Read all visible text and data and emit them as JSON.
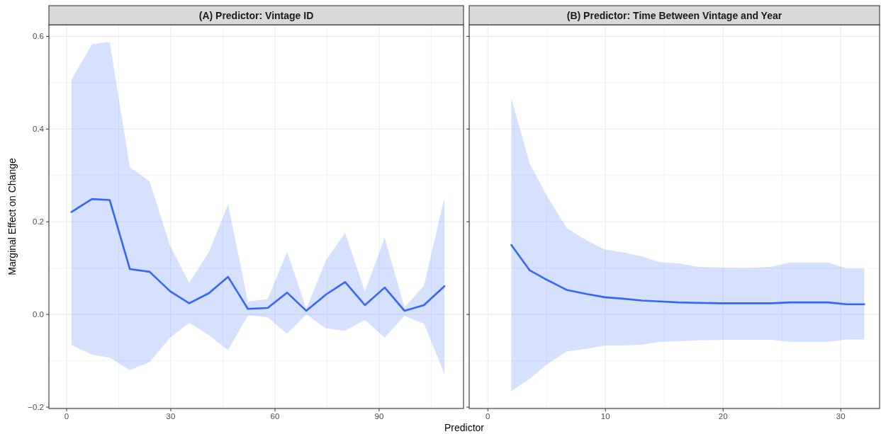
{
  "chart_data": [
    {
      "type": "line",
      "title": "(A) Predictor: Vintage ID",
      "xlabel": "Predictor",
      "ylabel": "Marginal Effect on  Change",
      "xlim": [
        -5.1,
        114.3
      ],
      "xticks": [
        0,
        30,
        60,
        90
      ],
      "ylim": [
        -0.203,
        0.625
      ],
      "yticks": [
        {
          "value": -0.2,
          "label": "−0.2"
        },
        {
          "value": 0,
          "label": "0.0"
        },
        {
          "value": 0.2,
          "label": "0.2"
        },
        {
          "value": 0.4,
          "label": "0.4"
        },
        {
          "value": 0.6,
          "label": "0.6"
        }
      ],
      "grid": true,
      "series": [
        {
          "color": "#3366ff",
          "x": [
            1.4,
            7.3,
            12.4,
            18.2,
            23.9,
            29.8,
            35.3,
            41,
            46.5,
            52.2,
            57.9,
            63.5,
            69,
            74.7,
            80.2,
            85.9,
            91.6,
            97.3,
            102.9,
            108.8
          ],
          "values": [
            0.221,
            0.249,
            0.247,
            0.098,
            0.092,
            0.05,
            0.024,
            0.046,
            0.081,
            0.012,
            0.014,
            0.047,
            0.008,
            0.043,
            0.07,
            0.02,
            0.058,
            0.008,
            0.02,
            0.061
          ],
          "upper": [
            0.507,
            0.583,
            0.588,
            0.318,
            0.287,
            0.148,
            0.068,
            0.135,
            0.237,
            0.028,
            0.033,
            0.135,
            0.012,
            0.117,
            0.176,
            0.05,
            0.165,
            0.015,
            0.062,
            0.252
          ],
          "lower": [
            -0.066,
            -0.087,
            -0.093,
            -0.12,
            -0.103,
            -0.05,
            -0.018,
            -0.045,
            -0.077,
            -0.002,
            -0.006,
            -0.042,
            0,
            -0.03,
            -0.035,
            -0.012,
            -0.05,
            -0.003,
            -0.02,
            -0.128
          ]
        }
      ]
    },
    {
      "type": "line",
      "title": "(B) Predictor: Time Between Vintage and Year",
      "xlim": [
        -1.58,
        33.3
      ],
      "xticks": [
        0,
        10,
        20,
        30
      ],
      "ylim": [
        -0.203,
        0.625
      ],
      "yticks": [
        -0.2,
        0,
        0.2,
        0.4,
        0.6
      ],
      "grid": true,
      "tick_labels": "x",
      "series": [
        {
          "color": "#3366ff",
          "x": [
            2,
            3.57,
            5,
            6.7,
            8.4,
            9.96,
            11.5,
            13.1,
            14.6,
            16.2,
            17.8,
            20,
            22,
            24.1,
            25.7,
            27.2,
            28.9,
            30.5,
            32
          ],
          "values": [
            0.15,
            0.095,
            0.075,
            0.053,
            0.044,
            0.037,
            0.034,
            0.03,
            0.028,
            0.026,
            0.025,
            0.024,
            0.024,
            0.024,
            0.026,
            0.026,
            0.026,
            0.022,
            0.022
          ],
          "upper": [
            0.466,
            0.325,
            0.257,
            0.186,
            0.16,
            0.14,
            0.134,
            0.125,
            0.113,
            0.11,
            0.103,
            0.101,
            0.1,
            0.103,
            0.112,
            0.112,
            0.112,
            0.099,
            0.099
          ],
          "lower": [
            -0.165,
            -0.139,
            -0.108,
            -0.08,
            -0.074,
            -0.067,
            -0.067,
            -0.065,
            -0.059,
            -0.058,
            -0.056,
            -0.055,
            -0.055,
            -0.055,
            -0.059,
            -0.059,
            -0.059,
            -0.054,
            -0.054
          ]
        }
      ]
    }
  ]
}
